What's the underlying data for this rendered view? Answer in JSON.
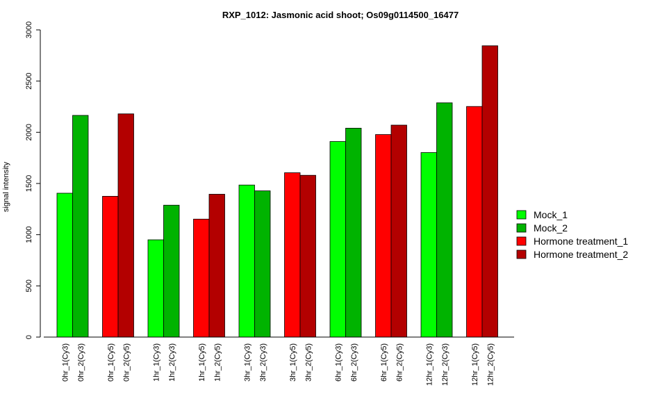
{
  "chart_data": {
    "type": "bar",
    "title": "RXP_1012: Jasmonic acid shoot; Os09g0114500_16477",
    "ylabel": "signal intensity",
    "xlabel": "",
    "ylim": [
      0,
      3000
    ],
    "yticks": [
      0,
      500,
      1000,
      1500,
      2000,
      2500,
      3000
    ],
    "grid": false,
    "legend_position": "right",
    "legend": [
      {
        "name": "Mock_1",
        "color": "#00ff00"
      },
      {
        "name": "Mock_2",
        "color": "#00b300"
      },
      {
        "name": "Hormone treatment_1",
        "color": "#ff0000"
      },
      {
        "name": "Hormone treatment_2",
        "color": "#b30000"
      }
    ],
    "groups": [
      {
        "bars": [
          {
            "label": "0hr_1(Cy3)",
            "value": 1405,
            "series": 0
          },
          {
            "label": "0hr_2(Cy3)",
            "value": 2165,
            "series": 1
          }
        ]
      },
      {
        "bars": [
          {
            "label": "0hr_1(Cy5)",
            "value": 1375,
            "series": 2
          },
          {
            "label": "0hr_2(Cy5)",
            "value": 2180,
            "series": 3
          }
        ]
      },
      {
        "bars": [
          {
            "label": "1hr_1(Cy3)",
            "value": 950,
            "series": 0
          },
          {
            "label": "1hr_2(Cy3)",
            "value": 1288,
            "series": 1
          }
        ]
      },
      {
        "bars": [
          {
            "label": "1hr_1(Cy5)",
            "value": 1152,
            "series": 2
          },
          {
            "label": "1hr_2(Cy5)",
            "value": 1395,
            "series": 3
          }
        ]
      },
      {
        "bars": [
          {
            "label": "3hr_1(Cy3)",
            "value": 1485,
            "series": 0
          },
          {
            "label": "3hr_2(Cy3)",
            "value": 1428,
            "series": 1
          }
        ]
      },
      {
        "bars": [
          {
            "label": "3hr_1(Cy5)",
            "value": 1605,
            "series": 2
          },
          {
            "label": "3hr_2(Cy5)",
            "value": 1580,
            "series": 3
          }
        ]
      },
      {
        "bars": [
          {
            "label": "6hr_1(Cy3)",
            "value": 1910,
            "series": 0
          },
          {
            "label": "6hr_2(Cy3)",
            "value": 2040,
            "series": 1
          }
        ]
      },
      {
        "bars": [
          {
            "label": "6hr_1(Cy5)",
            "value": 1978,
            "series": 2
          },
          {
            "label": "6hr_2(Cy5)",
            "value": 2070,
            "series": 3
          }
        ]
      },
      {
        "bars": [
          {
            "label": "12hr_1(Cy3)",
            "value": 1802,
            "series": 0
          },
          {
            "label": "12hr_2(Cy3)",
            "value": 2288,
            "series": 1
          }
        ]
      },
      {
        "bars": [
          {
            "label": "12hr_1(Cy5)",
            "value": 2252,
            "series": 2
          },
          {
            "label": "12hr_2(Cy5)",
            "value": 2845,
            "series": 3
          }
        ]
      }
    ]
  }
}
